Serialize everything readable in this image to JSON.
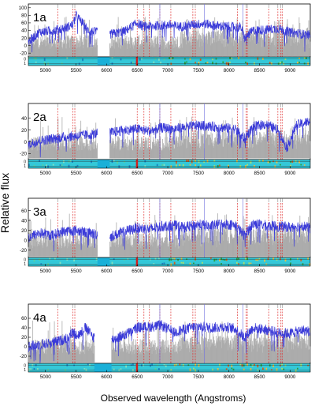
{
  "figure": {
    "ylabel": "Relative flux",
    "xlabel": "Observed wavelength (Angstroms)"
  },
  "colors": {
    "spectrum": "#3a3ad8",
    "noise": "#a8a8a8",
    "line_marker": "#e03030",
    "axis": "#000000"
  },
  "chart_data": [
    {
      "type": "line",
      "panel_label": "1a",
      "x_range": [
        4720,
        9330
      ],
      "ylim": [
        -30,
        110
      ],
      "y_ticks": [
        -20,
        0,
        20,
        40,
        60,
        80,
        100
      ],
      "x_ticks": [
        5000,
        5500,
        6000,
        6500,
        7000,
        7500,
        8000,
        8500,
        9000
      ],
      "gap": [
        5850,
        6050
      ],
      "series": [
        {
          "x": [
            4720,
            4900,
            5100,
            5300,
            5450,
            5500,
            5700,
            5840,
            6080,
            6300,
            6500,
            6600,
            6800,
            7000,
            7200,
            7400,
            7600,
            7800,
            8000,
            8200,
            8250,
            8400,
            8600,
            8800,
            9000,
            9200,
            9330
          ],
          "y": [
            10,
            35,
            40,
            45,
            55,
            80,
            40,
            35,
            30,
            38,
            60,
            50,
            52,
            55,
            50,
            55,
            58,
            52,
            50,
            48,
            20,
            40,
            42,
            45,
            35,
            30,
            28
          ]
        }
      ]
    },
    {
      "type": "line",
      "panel_label": "2a",
      "x_range": [
        4720,
        9330
      ],
      "ylim": [
        -30,
        65
      ],
      "y_ticks": [
        -20,
        0,
        20,
        40
      ],
      "x_ticks": [
        5000,
        5500,
        6000,
        6500,
        7000,
        7500,
        8000,
        8500,
        9000
      ],
      "gap": [
        5850,
        6050
      ],
      "series": [
        {
          "x": [
            4720,
            4900,
            5100,
            5300,
            5500,
            5700,
            5840,
            6080,
            6300,
            6500,
            6700,
            6900,
            7100,
            7300,
            7500,
            7700,
            7900,
            8100,
            8250,
            8400,
            8600,
            8800,
            8950,
            9100,
            9330
          ],
          "y": [
            -5,
            2,
            5,
            8,
            10,
            12,
            14,
            16,
            20,
            22,
            18,
            24,
            22,
            25,
            28,
            26,
            24,
            22,
            5,
            26,
            30,
            20,
            -10,
            28,
            35
          ]
        }
      ]
    },
    {
      "type": "line",
      "panel_label": "3a",
      "x_range": [
        4720,
        9330
      ],
      "ylim": [
        -35,
        85
      ],
      "y_ticks": [
        -20,
        0,
        20,
        40,
        60
      ],
      "x_ticks": [
        5000,
        5500,
        6000,
        6500,
        7000,
        7500,
        8000,
        8500,
        9000
      ],
      "gap": [
        5850,
        6050
      ],
      "series": [
        {
          "x": [
            4720,
            4900,
            5100,
            5300,
            5500,
            5700,
            5840,
            6080,
            6300,
            6500,
            6700,
            6900,
            7100,
            7300,
            7500,
            7700,
            7900,
            8100,
            8250,
            8400,
            8600,
            8800,
            9000,
            9200,
            9330
          ],
          "y": [
            5,
            15,
            10,
            18,
            20,
            15,
            12,
            8,
            18,
            25,
            22,
            28,
            30,
            26,
            32,
            28,
            34,
            30,
            10,
            34,
            30,
            28,
            26,
            30,
            24
          ]
        }
      ]
    },
    {
      "type": "line",
      "panel_label": "4a",
      "x_range": [
        4720,
        9330
      ],
      "ylim": [
        -35,
        90
      ],
      "y_ticks": [
        -20,
        0,
        20,
        40,
        60
      ],
      "x_ticks": [
        5000,
        5500,
        6000,
        6500,
        7000,
        7500,
        8000,
        8500,
        9000
      ],
      "gap": [
        5800,
        6080
      ],
      "series": [
        {
          "x": [
            4720,
            4900,
            5100,
            5300,
            5450,
            5550,
            5650,
            5790,
            6090,
            6300,
            6500,
            6700,
            6900,
            7100,
            7300,
            7500,
            7700,
            7900,
            8100,
            8250,
            8400,
            8600,
            8800,
            9000,
            9200,
            9330
          ],
          "y": [
            0,
            5,
            8,
            15,
            30,
            25,
            40,
            20,
            15,
            25,
            40,
            42,
            45,
            30,
            38,
            44,
            40,
            42,
            38,
            20,
            40,
            36,
            30,
            28,
            35,
            32
          ]
        }
      ]
    }
  ]
}
